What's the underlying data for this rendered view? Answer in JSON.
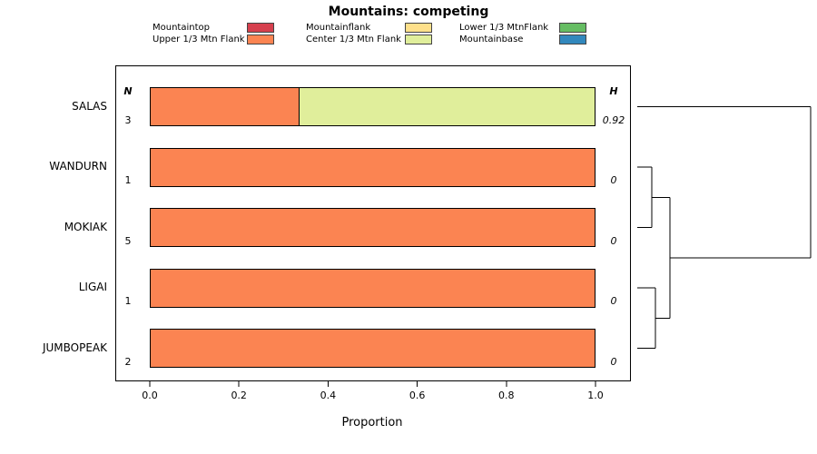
{
  "title": "Mountains: competing",
  "columns": {
    "n_header": "N",
    "h_header": "H"
  },
  "colors": {
    "Mountaintop": "#D6404E",
    "Upper 1/3 Mtn Flank": "#FB8452",
    "Mountainflank": "#FEE08B",
    "Center 1/3 Mtn Flank": "#E0EE9B",
    "Lower 1/3 MtnFlank": "#66BD63",
    "Mountainbase": "#3288BD"
  },
  "legend": {
    "columns": [
      {
        "items": [
          {
            "label": "Mountaintop",
            "color": "#D6404E"
          },
          {
            "label": "Upper 1/3 Mtn Flank",
            "color": "#FB8452"
          }
        ]
      },
      {
        "items": [
          {
            "label": "Mountainflank",
            "color": "#FEE08B"
          },
          {
            "label": "Center 1/3 Mtn Flank",
            "color": "#E0EE9B"
          }
        ]
      },
      {
        "items": [
          {
            "label": "Lower 1/3 MtnFlank",
            "color": "#66BD63"
          },
          {
            "label": "Mountainbase",
            "color": "#3288BD"
          }
        ]
      }
    ]
  },
  "chart_data": {
    "type": "bar",
    "orientation": "horizontal",
    "stacked": true,
    "title": "Mountains: competing",
    "xlabel": "Proportion",
    "xlim": [
      0,
      1
    ],
    "grid": false,
    "legend_position": "top",
    "xticks": [
      {
        "value": 0.0,
        "label": "0.0"
      },
      {
        "value": 0.2,
        "label": "0.2"
      },
      {
        "value": 0.4,
        "label": "0.4"
      },
      {
        "value": 0.6,
        "label": "0.6"
      },
      {
        "value": 0.8,
        "label": "0.8"
      },
      {
        "value": 1.0,
        "label": "1.0"
      }
    ],
    "rows": [
      {
        "label": "SALAS",
        "n": "3",
        "h": "0.92",
        "segments": [
          {
            "name": "Upper 1/3 Mtn Flank",
            "value": 0.333
          },
          {
            "name": "Center 1/3 Mtn Flank",
            "value": 0.667
          }
        ]
      },
      {
        "label": "WANDURN",
        "n": "1",
        "h": "0",
        "segments": [
          {
            "name": "Upper 1/3 Mtn Flank",
            "value": 1
          }
        ]
      },
      {
        "label": "MOKIAK",
        "n": "5",
        "h": "0",
        "segments": [
          {
            "name": "Upper 1/3 Mtn Flank",
            "value": 1
          }
        ]
      },
      {
        "label": "LIGAI",
        "n": "1",
        "h": "0",
        "segments": [
          {
            "name": "Upper 1/3 Mtn Flank",
            "value": 1
          }
        ]
      },
      {
        "label": "JUMBOPEAK",
        "n": "2",
        "h": "0",
        "segments": [
          {
            "name": "Upper 1/3 Mtn Flank",
            "value": 1
          }
        ]
      }
    ],
    "dendrogram": {
      "leaf_order": [
        "SALAS",
        "WANDURN",
        "MOKIAK",
        "LIGAI",
        "JUMBOPEAK"
      ],
      "leaf_x": 702,
      "merges": [
        {
          "a": "WANDURN",
          "b": "MOKIAK",
          "x": 718
        },
        {
          "a": "LIGAI",
          "b": "JUMBOPEAK",
          "x": 722
        },
        {
          "a": "m0",
          "b": "m1",
          "x": 738
        },
        {
          "a": "m2",
          "b": "SALAS",
          "x": 893
        }
      ]
    }
  }
}
